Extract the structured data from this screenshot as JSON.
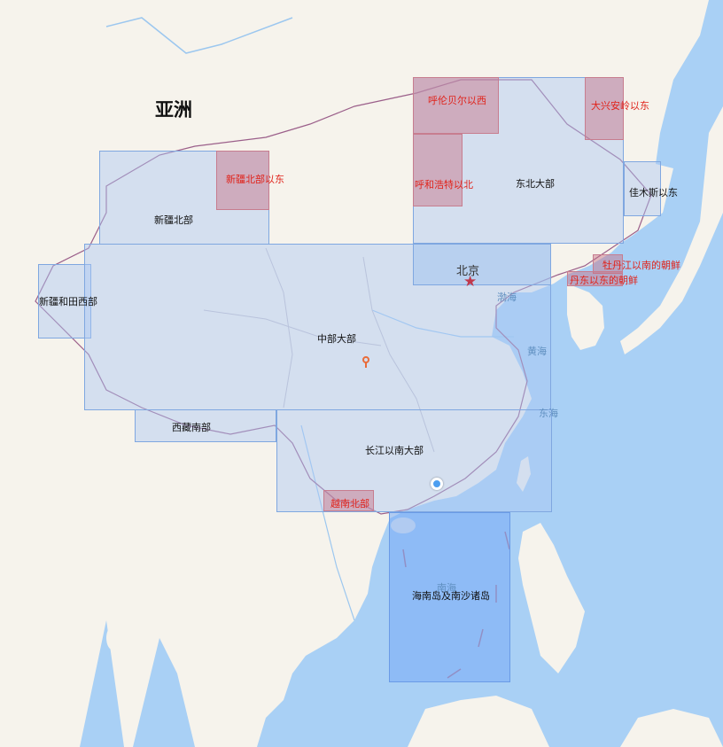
{
  "map": {
    "continent_label": "亚洲",
    "capital_label": "北京",
    "water_labels": {
      "bohai": "渤海",
      "yellow_sea": "黄海",
      "east_china_sea": "东海",
      "south_china_sea": "南海"
    },
    "regions": {
      "xinjiang_north": "新疆北部",
      "xinjiang_north_east": "新疆北部以东",
      "xinjiang_hotan_west": "新疆和田西部",
      "central": "中部大部",
      "tibet_south": "西藏南部",
      "hulunbuir_west": "呼伦贝尔以西",
      "hohhot_north": "呼和浩特以北",
      "northeast": "东北大部",
      "daxinganling_east": "大兴安岭以东",
      "jiamusi_east": "佳木斯以东",
      "mudanjiang_korea": "牡丹江以南的朝鲜",
      "dandong_korea": "丹东以东的朝鲜",
      "south_of_yangtze": "长江以南大部",
      "vietnam_north": "越南北部",
      "hainan_nansha": "海南岛及南沙诸岛"
    },
    "colors": {
      "sea": "#a9d0f5",
      "land": "#f6f3ec",
      "region_fill": "#aac8f5",
      "red_region_fill": "#c86e82",
      "red_label": "#e0231b",
      "capital_star": "#c0394d"
    },
    "markers": {
      "location_dot": "current-location",
      "pin": "map-pin"
    }
  }
}
